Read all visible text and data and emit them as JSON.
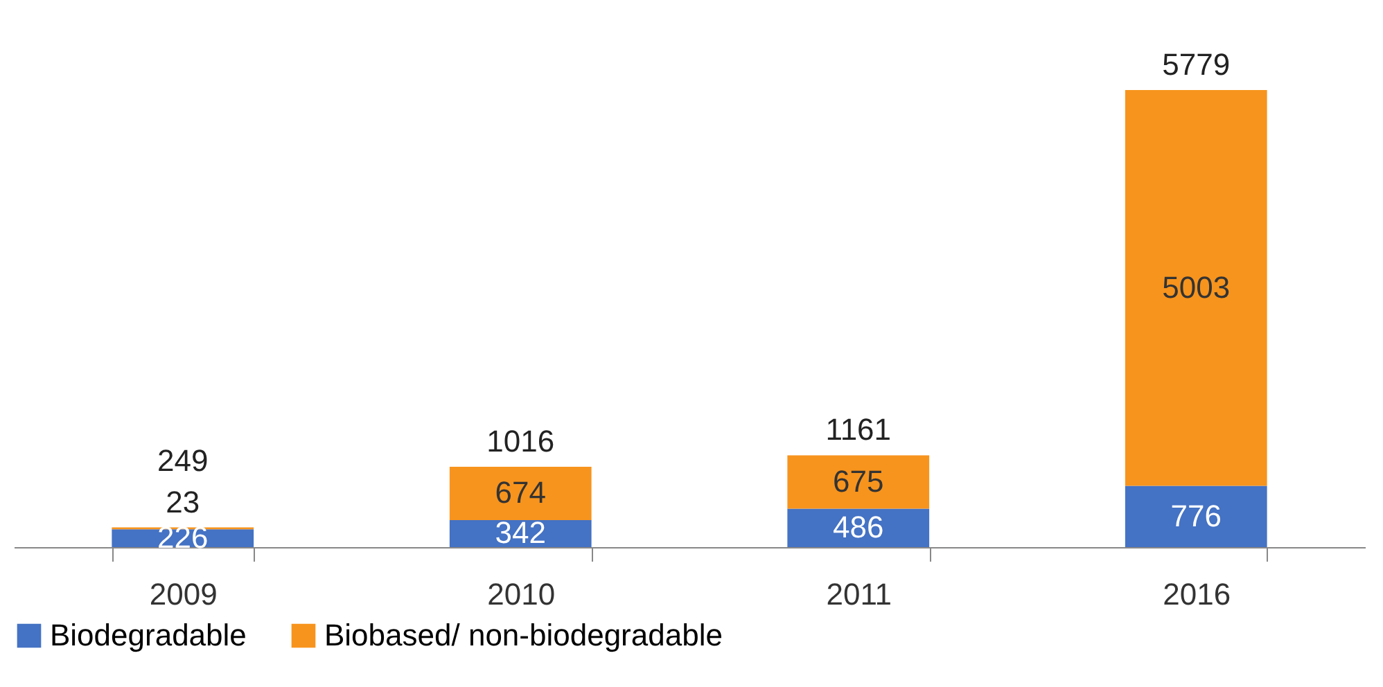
{
  "chart_data": {
    "type": "bar",
    "stacked": true,
    "categories": [
      "2009",
      "2010",
      "2011",
      "2016"
    ],
    "series": [
      {
        "name": "Biodegradable",
        "color": "#4472c4",
        "values": [
          226,
          342,
          486,
          776
        ]
      },
      {
        "name": "Biobased/ non-biodegradable",
        "color": "#f7941d",
        "values": [
          23,
          674,
          675,
          5003
        ]
      }
    ],
    "totals": [
      "249",
      "1016",
      "1161",
      "5779"
    ],
    "data_labels": true,
    "legend": "bottom",
    "grid": false
  }
}
